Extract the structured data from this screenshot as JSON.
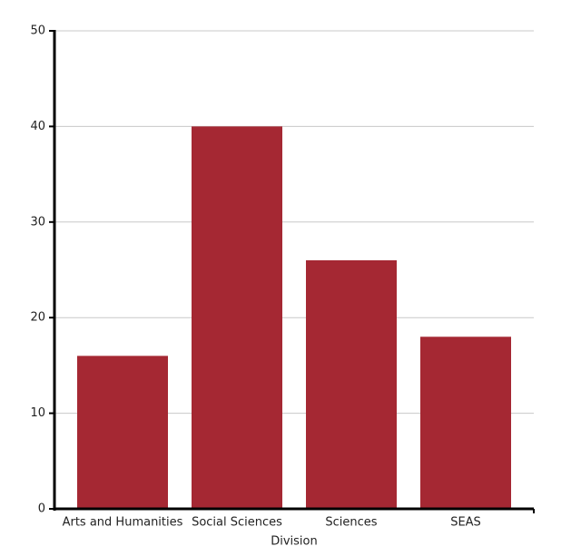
{
  "chart_data": {
    "type": "bar",
    "x_label": "Division",
    "categories": [
      "Arts and Humanities",
      "Social Sciences",
      "Sciences",
      "SEAS"
    ],
    "values": [
      16,
      40,
      26,
      18
    ],
    "color": "#a52833",
    "ylim": [
      0,
      50
    ],
    "yticks": [
      0,
      10,
      20,
      30,
      40,
      50
    ],
    "grid": true
  }
}
